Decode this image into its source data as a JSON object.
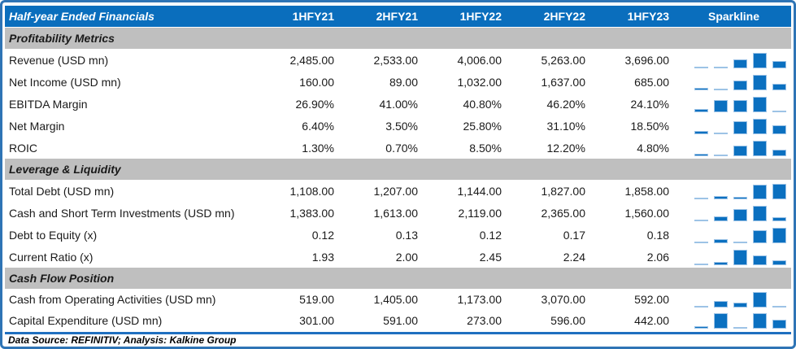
{
  "colors": {
    "header_bg": "#0a6ebd",
    "section_bg": "#bfbfbf",
    "bar_fill": "#0b70c0",
    "bar_border": "#9dc3e6",
    "frame": "#2e74b5",
    "rule": "#1f6fc0"
  },
  "header": {
    "title": "Half-year Ended Financials",
    "columns": [
      "1HFY21",
      "2HFY21",
      "1HFY22",
      "2HFY22",
      "1HFY23"
    ],
    "sparkline_label": "Sparkline"
  },
  "sections": [
    {
      "title": "Profitability Metrics",
      "rows": [
        {
          "label": "Revenue (USD mn)",
          "values": [
            "2,485.00",
            "2,533.00",
            "4,006.00",
            "5,263.00",
            "3,696.00"
          ]
        },
        {
          "label": "Net Income (USD mn)",
          "values": [
            "160.00",
            "89.00",
            "1,032.00",
            "1,637.00",
            "685.00"
          ]
        },
        {
          "label": "EBITDA Margin",
          "values": [
            "26.90%",
            "41.00%",
            "40.80%",
            "46.20%",
            "24.10%"
          ]
        },
        {
          "label": "Net Margin",
          "values": [
            "6.40%",
            "3.50%",
            "25.80%",
            "31.10%",
            "18.50%"
          ]
        },
        {
          "label": "ROIC",
          "values": [
            "1.30%",
            "0.70%",
            "8.50%",
            "12.20%",
            "4.80%"
          ]
        }
      ]
    },
    {
      "title": "Leverage & Liquidity",
      "rows": [
        {
          "label": "Total Debt (USD mn)",
          "values": [
            "1,108.00",
            "1,207.00",
            "1,144.00",
            "1,827.00",
            "1,858.00"
          ]
        },
        {
          "label": "Cash and Short Term Investments (USD mn)",
          "values": [
            "1,383.00",
            "1,613.00",
            "2,119.00",
            "2,365.00",
            "1,560.00"
          ]
        },
        {
          "label": "Debt to Equity (x)",
          "values": [
            "0.12",
            "0.13",
            "0.12",
            "0.17",
            "0.18"
          ]
        },
        {
          "label": "Current Ratio (x)",
          "values": [
            "1.93",
            "2.00",
            "2.45",
            "2.24",
            "2.06"
          ]
        }
      ]
    },
    {
      "title": "Cash Flow Position",
      "rows": [
        {
          "label": "Cash from Operating Activities (USD mn)",
          "values": [
            "519.00",
            "1,405.00",
            "1,173.00",
            "3,070.00",
            "592.00"
          ]
        },
        {
          "label": "Capital Expenditure (USD mn)",
          "values": [
            "301.00",
            "591.00",
            "273.00",
            "596.00",
            "442.00"
          ]
        }
      ]
    }
  ],
  "footer": {
    "text": "Data Source: REFINITIV; Analysis: Kalkine Group"
  },
  "chart_data": {
    "type": "table",
    "title": "Half-year Ended Financials",
    "categories": [
      "1HFY21",
      "2HFY21",
      "1HFY22",
      "2HFY22",
      "1HFY23"
    ],
    "sparkline_type": "column",
    "series": [
      {
        "name": "Revenue (USD mn)",
        "section": "Profitability Metrics",
        "values": [
          2485.0,
          2533.0,
          4006.0,
          5263.0,
          3696.0
        ]
      },
      {
        "name": "Net Income (USD mn)",
        "section": "Profitability Metrics",
        "values": [
          160.0,
          89.0,
          1032.0,
          1637.0,
          685.0
        ]
      },
      {
        "name": "EBITDA Margin",
        "section": "Profitability Metrics",
        "values": [
          26.9,
          41.0,
          40.8,
          46.2,
          24.1
        ],
        "unit": "%"
      },
      {
        "name": "Net Margin",
        "section": "Profitability Metrics",
        "values": [
          6.4,
          3.5,
          25.8,
          31.1,
          18.5
        ],
        "unit": "%"
      },
      {
        "name": "ROIC",
        "section": "Profitability Metrics",
        "values": [
          1.3,
          0.7,
          8.5,
          12.2,
          4.8
        ],
        "unit": "%"
      },
      {
        "name": "Total Debt (USD mn)",
        "section": "Leverage & Liquidity",
        "values": [
          1108.0,
          1207.0,
          1144.0,
          1827.0,
          1858.0
        ]
      },
      {
        "name": "Cash and Short Term Investments (USD mn)",
        "section": "Leverage & Liquidity",
        "values": [
          1383.0,
          1613.0,
          2119.0,
          2365.0,
          1560.0
        ]
      },
      {
        "name": "Debt to Equity (x)",
        "section": "Leverage & Liquidity",
        "values": [
          0.12,
          0.13,
          0.12,
          0.17,
          0.18
        ]
      },
      {
        "name": "Current Ratio (x)",
        "section": "Leverage & Liquidity",
        "values": [
          1.93,
          2.0,
          2.45,
          2.24,
          2.06
        ]
      },
      {
        "name": "Cash from Operating Activities (USD mn)",
        "section": "Cash Flow Position",
        "values": [
          519.0,
          1405.0,
          1173.0,
          3070.0,
          592.0
        ]
      },
      {
        "name": "Capital Expenditure (USD mn)",
        "section": "Cash Flow Position",
        "values": [
          301.0,
          591.0,
          273.0,
          596.0,
          442.0
        ]
      }
    ],
    "source": "Data Source: REFINITIV; Analysis: Kalkine Group"
  }
}
